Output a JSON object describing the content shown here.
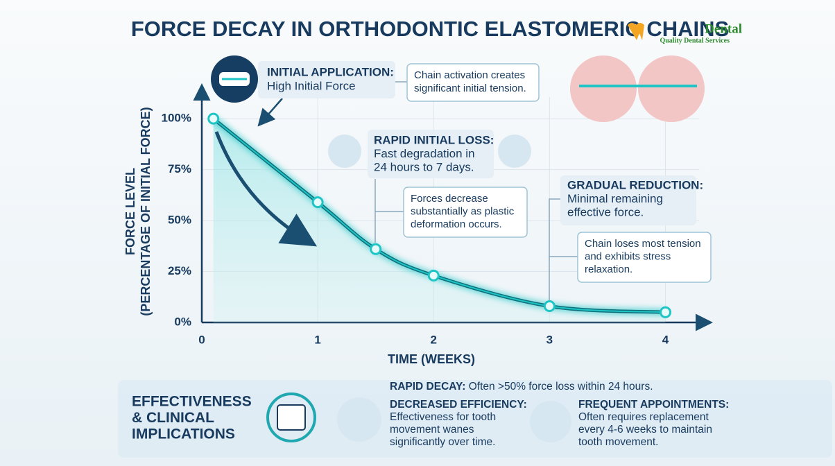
{
  "logo": {
    "name": "Dental",
    "tagline": "Quality Dental Services"
  },
  "chart_data": {
    "type": "line",
    "title": "FORCE DECAY IN ORTHODONTIC ELASTOMERIC CHAINS",
    "x_label": "TIME (WEEKS)",
    "y_label": [
      "FORCE LEVEL",
      "(PERCENTAGE OF INITIAL FORCE)"
    ],
    "x": [
      0.1,
      1,
      1.5,
      2,
      3,
      4
    ],
    "series": [
      {
        "color": "#1fc4c4",
        "values": [
          100,
          59,
          36,
          23,
          8,
          5
        ]
      }
    ],
    "xlim": [
      0,
      4.35
    ],
    "ylim": [
      0,
      114
    ],
    "xticks": [
      0,
      1,
      2,
      3,
      4
    ],
    "yticks": [
      {
        "value": 0,
        "label": "0%"
      },
      {
        "value": 25,
        "label": "25%"
      },
      {
        "value": 50,
        "label": "50%"
      },
      {
        "value": 75,
        "label": "75%"
      },
      {
        "value": 100,
        "label": "100%"
      }
    ],
    "grid": true,
    "annotations": [
      {
        "title": "INITIAL APPLICATION:",
        "lines": [
          "High Initial Force"
        ]
      },
      {
        "lines": [
          "Chain activation creates",
          "significant initial tension."
        ]
      },
      {
        "title": "RAPID INITIAL LOSS:",
        "lines": [
          "Fast degradation in",
          "24 hours to 7 days."
        ]
      },
      {
        "lines": [
          "Forces decrease",
          "substantially as plastic",
          "deformation occurs."
        ]
      },
      {
        "title": "GRADUAL REDUCTION:",
        "lines": [
          "Minimal remaining",
          "effective force."
        ]
      },
      {
        "lines": [
          "Chain loses most tension",
          "and exhibits stress",
          "relaxation."
        ]
      }
    ]
  },
  "implications": {
    "heading": [
      "EFFECTIVENESS",
      "& CLINICAL",
      "IMPLICATIONS"
    ],
    "items": [
      {
        "label": "RAPID DECAY:",
        "lines": [
          "Often >50% force loss within 24 hours."
        ]
      },
      {
        "label": "DECREASED EFFICIENCY:",
        "lines": [
          "Effectiveness for tooth",
          "movement wanes",
          "significantly over time."
        ]
      },
      {
        "label": "FREQUENT APPOINTMENTS:",
        "lines": [
          "Often requires replacement",
          "every 4-6 weeks to maintain",
          "tooth movement."
        ]
      }
    ]
  }
}
